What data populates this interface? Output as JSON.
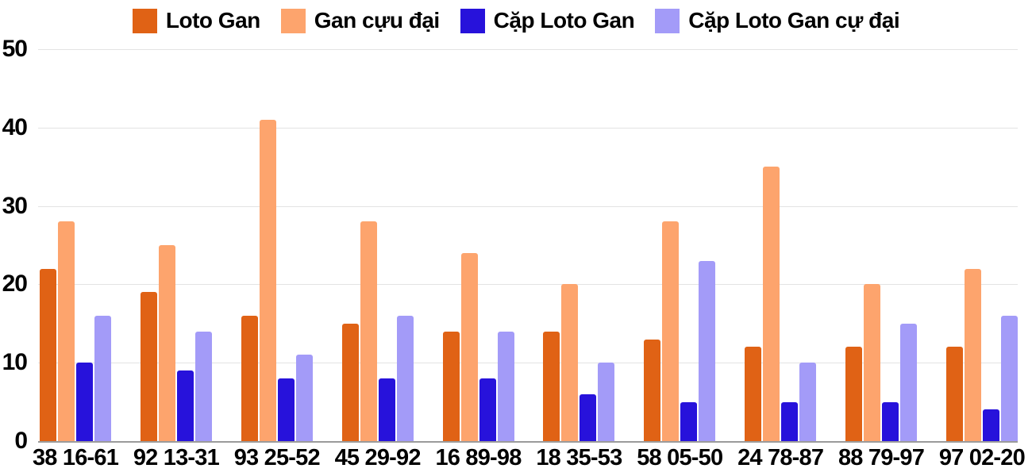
{
  "chart_data": {
    "type": "bar",
    "title": "",
    "xlabel": "",
    "ylabel": "",
    "categories": [
      "38 16-61",
      "92 13-31",
      "93 25-52",
      "45 29-92",
      "16 89-98",
      "18 35-53",
      "58 05-50",
      "24 78-87",
      "88 79-97",
      "97 02-20"
    ],
    "series": [
      {
        "name": "Loto Gan",
        "color": "#e06215",
        "values": [
          22,
          19,
          16,
          15,
          14,
          14,
          13,
          12,
          12,
          12
        ]
      },
      {
        "name": "Gan cựu đại",
        "color": "#fda46d",
        "values": [
          28,
          25,
          41,
          28,
          24,
          20,
          28,
          35,
          20,
          22
        ]
      },
      {
        "name": "Cặp Loto Gan",
        "color": "#2712db",
        "values": [
          10,
          9,
          8,
          8,
          8,
          6,
          5,
          5,
          5,
          4
        ]
      },
      {
        "name": "Cặp Loto Gan cự đại",
        "color": "#a39bf8",
        "values": [
          16,
          14,
          11,
          16,
          14,
          10,
          23,
          10,
          15,
          16
        ]
      }
    ],
    "ylim": [
      0,
      50
    ],
    "yticks": [
      0,
      10,
      20,
      30,
      40,
      50
    ],
    "grid": true,
    "legend_position": "top",
    "colors": {
      "gridline": "#e3e3e3",
      "baseline": "#9b9b9b",
      "text": "#000000",
      "background": "#ffffff"
    }
  }
}
